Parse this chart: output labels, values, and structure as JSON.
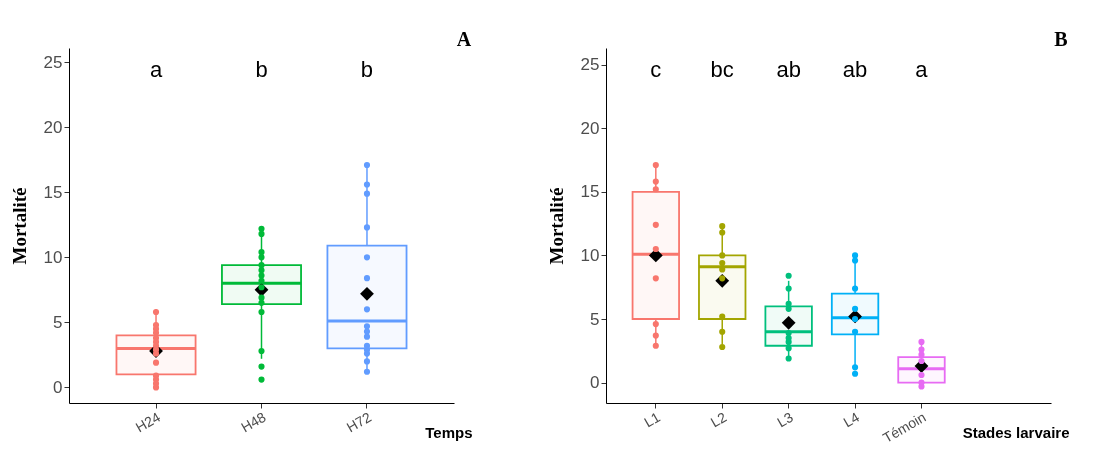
{
  "chart_data": [
    {
      "type": "box",
      "xlabel": "Temps",
      "ylabel": "Mortalité",
      "categories": [
        "H24",
        "H48",
        "H72"
      ],
      "colors": [
        "#f8766d",
        "#00ba38",
        "#619cff"
      ],
      "boxes": [
        {
          "low": 0,
          "q1": 1,
          "median": 3,
          "q3": 4,
          "high": 6,
          "mean": 2.8
        },
        {
          "low": 2.2,
          "q1": 6.4,
          "median": 8,
          "q3": 9.4,
          "high": 12,
          "mean": 7.5
        },
        {
          "low": 1.1,
          "q1": 3,
          "median": 5.1,
          "q3": 10.9,
          "high": 17,
          "mean": 7.2
        }
      ],
      "series": [
        {
          "type": "scatter",
          "color": "#f8766d",
          "x": [
            "H24",
            "H24",
            "H24",
            "H24",
            "H24",
            "H24",
            "H24",
            "H24",
            "H24",
            "H24",
            "H24",
            "H24",
            "H24",
            "H24"
          ],
          "values": [
            5.8,
            4.8,
            4.5,
            4.2,
            3.8,
            3.5,
            3.2,
            2.9,
            2.6,
            1.9,
            0.9,
            0.6,
            0.3,
            0.0
          ]
        },
        {
          "type": "scatter",
          "color": "#00ba38",
          "x": [
            "H48",
            "H48",
            "H48",
            "H48",
            "H48",
            "H48",
            "H48",
            "H48",
            "H48",
            "H48",
            "H48",
            "H48",
            "H48",
            "H48",
            "H48"
          ],
          "values": [
            12.2,
            11.8,
            10.4,
            10.0,
            9.4,
            9.0,
            8.6,
            8.2,
            7.7,
            6.9,
            6.5,
            5.8,
            2.8,
            1.6,
            0.6
          ]
        },
        {
          "type": "scatter",
          "color": "#619cff",
          "x": [
            "H72",
            "H72",
            "H72",
            "H72",
            "H72",
            "H72",
            "H72",
            "H72",
            "H72",
            "H72",
            "H72",
            "H72",
            "H72",
            "H72",
            "H72"
          ],
          "values": [
            17.1,
            15.6,
            14.9,
            12.3,
            10.0,
            8.4,
            6.0,
            4.7,
            4.3,
            3.9,
            3.2,
            2.9,
            2.6,
            2.0,
            1.2
          ]
        }
      ],
      "ylim": [
        -1.2,
        26.1
      ],
      "yticks": [
        0,
        5,
        10,
        15,
        20,
        25
      ],
      "grid": false,
      "legend": false,
      "marker": "circle",
      "annotations": [
        "a",
        "b",
        "b",
        "A"
      ]
    },
    {
      "type": "box",
      "xlabel": "Stades larvaire",
      "ylabel": "Mortalité",
      "categories": [
        "L1",
        "L2",
        "L3",
        "L4",
        "Témoin"
      ],
      "colors": [
        "#f8766d",
        "#a3a500",
        "#00bf7d",
        "#00b0f6",
        "#e76bf3"
      ],
      "boxes": [
        {
          "low": 3,
          "q1": 5,
          "median": 10.1,
          "q3": 15,
          "high": 17,
          "mean": 10
        },
        {
          "low": 3,
          "q1": 5,
          "median": 9.1,
          "q3": 10,
          "high": 12.3,
          "mean": 8
        },
        {
          "low": 2,
          "q1": 2.9,
          "median": 4,
          "q3": 6,
          "high": 8,
          "mean": 4.7
        },
        {
          "low": 1,
          "q1": 3.8,
          "median": 5.1,
          "q3": 7,
          "high": 10,
          "mean": 5.2
        },
        {
          "low": 0,
          "q1": 0,
          "median": 1.1,
          "q3": 2,
          "high": 3,
          "mean": 1.3
        }
      ],
      "series": [
        {
          "type": "scatter",
          "color": "#f8766d",
          "x": [
            "L1",
            "L1",
            "L1",
            "L1",
            "L1",
            "L1",
            "L1",
            "L1",
            "L1"
          ],
          "values": [
            17.1,
            15.8,
            15.2,
            12.4,
            10.5,
            8.2,
            4.6,
            3.7,
            2.9
          ]
        },
        {
          "type": "scatter",
          "color": "#a3a500",
          "x": [
            "L2",
            "L2",
            "L2",
            "L2",
            "L2",
            "L2",
            "L2",
            "L2",
            "L2"
          ],
          "values": [
            12.3,
            11.8,
            10,
            9.4,
            8.9,
            8.2,
            5.2,
            4.0,
            2.8
          ]
        },
        {
          "type": "scatter",
          "color": "#00bf7d",
          "x": [
            "L3",
            "L3",
            "L3",
            "L3",
            "L3",
            "L3",
            "L3",
            "L3",
            "L3"
          ],
          "values": [
            8.4,
            7.4,
            6.2,
            5.8,
            3.9,
            3.5,
            3.2,
            2.7,
            1.9
          ]
        },
        {
          "type": "scatter",
          "color": "#00b0f6",
          "x": [
            "L4",
            "L4",
            "L4",
            "L4",
            "L4",
            "L4",
            "L4",
            "L4"
          ],
          "values": [
            10,
            9.6,
            7.4,
            5.8,
            5.0,
            4.0,
            1.2,
            0.7
          ]
        },
        {
          "type": "scatter",
          "color": "#e76bf3",
          "x": [
            "Témoin",
            "Témoin",
            "Témoin",
            "Témoin",
            "Témoin",
            "Témoin",
            "Témoin"
          ],
          "values": [
            3.2,
            2.6,
            2.2,
            1.7,
            0.6,
            0.0,
            -0.3
          ]
        }
      ],
      "ylim": [
        -1.6,
        26.3
      ],
      "yticks": [
        0,
        5,
        10,
        15,
        20,
        25
      ],
      "grid": false,
      "legend": false,
      "marker": "circle",
      "annotations": [
        "c",
        "bc",
        "ab",
        "ab",
        "a",
        "B"
      ]
    }
  ]
}
